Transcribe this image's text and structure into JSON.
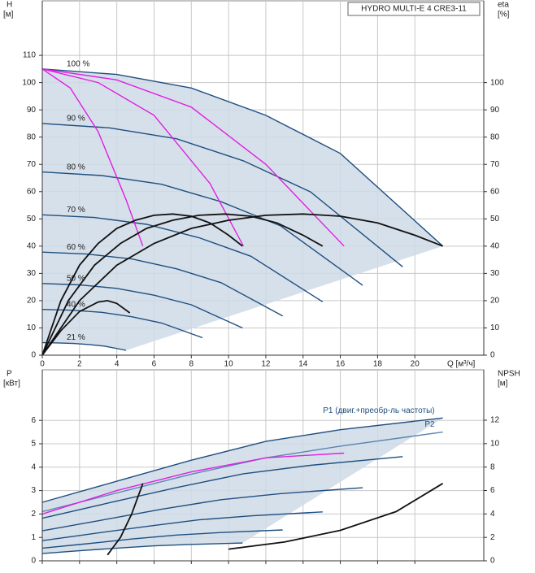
{
  "chart_data": [
    {
      "type": "line",
      "title": "HYDRO MULTI-E 4 CRE3-11",
      "y_label": "H",
      "y_unit": "[м]",
      "y2_label": "eta",
      "y2_unit": "[%]",
      "x_label": "Q [м³/ч]",
      "xlim": [
        0,
        23.7
      ],
      "xticks": [
        0,
        2,
        4,
        6,
        8,
        10,
        12,
        14,
        16,
        18,
        20
      ],
      "ylim": [
        0,
        130
      ],
      "yticks": [
        0,
        10,
        20,
        30,
        40,
        50,
        60,
        70,
        80,
        90,
        100,
        110
      ],
      "y2lim": [
        0,
        130
      ],
      "y2ticks": [
        0,
        10,
        20,
        30,
        40,
        50,
        60,
        70,
        80,
        90,
        100
      ],
      "grid": true,
      "shade": true,
      "label_position": "start",
      "series": [
        {
          "name": "100 %",
          "color": "#1f4f7f",
          "x": [
            0,
            4,
            8,
            12,
            16,
            21.5
          ],
          "values": [
            105,
            103,
            98,
            88,
            74,
            40
          ]
        },
        {
          "name": "90 %",
          "color": "#1f4f7f",
          "x": [
            0,
            3.6,
            7.2,
            10.8,
            14.4,
            19.35
          ],
          "values": [
            85,
            83.4,
            79.4,
            71.3,
            59.9,
            32.4
          ]
        },
        {
          "name": "80 %",
          "color": "#1f4f7f",
          "x": [
            0,
            3.2,
            6.4,
            9.6,
            12.8,
            17.2
          ],
          "values": [
            67.2,
            65.9,
            62.7,
            56.3,
            47.4,
            25.6
          ]
        },
        {
          "name": "70 %",
          "color": "#1f4f7f",
          "x": [
            0,
            2.8,
            5.6,
            8.4,
            11.2,
            15.05
          ],
          "values": [
            51.5,
            50.5,
            48,
            43.1,
            36.3,
            19.6
          ]
        },
        {
          "name": "60 %",
          "color": "#1f4f7f",
          "x": [
            0,
            2.4,
            4.8,
            7.2,
            9.6,
            12.9
          ],
          "values": [
            37.8,
            37.1,
            35.3,
            31.7,
            26.6,
            14.4
          ]
        },
        {
          "name": "50 %",
          "color": "#1f4f7f",
          "x": [
            0,
            2,
            4,
            6,
            8,
            10.75
          ],
          "values": [
            26.3,
            25.8,
            24.5,
            22,
            18.5,
            10
          ]
        },
        {
          "name": "40 %",
          "color": "#1f4f7f",
          "x": [
            0,
            1.6,
            3.2,
            4.8,
            6.4,
            8.6
          ],
          "values": [
            16.8,
            16.5,
            15.7,
            14.1,
            11.8,
            6.4
          ]
        },
        {
          "name": "21 %",
          "color": "#1f4f7f",
          "x": [
            0,
            0.84,
            1.68,
            2.52,
            3.36,
            4.5
          ],
          "values": [
            4.6,
            4.5,
            4.3,
            3.9,
            3.3,
            1.8
          ]
        },
        {
          "color": "#e020e0",
          "x": [
            0,
            1.5,
            3,
            4.5,
            5.4
          ],
          "values": [
            105,
            98,
            82,
            57,
            40
          ]
        },
        {
          "color": "#e020e0",
          "x": [
            0,
            3,
            6,
            9,
            10.8
          ],
          "values": [
            105,
            100,
            88,
            63,
            40
          ]
        },
        {
          "color": "#e020e0",
          "x": [
            0,
            4,
            8,
            12,
            16.2
          ],
          "values": [
            105,
            101,
            91,
            70,
            40
          ]
        },
        {
          "color": "#111111",
          "axis": "y2",
          "x": [
            0,
            2,
            4,
            6,
            8,
            10,
            12,
            14,
            16,
            18,
            20,
            21.5
          ],
          "values": [
            0,
            20,
            33,
            41,
            46.5,
            49.5,
            51.3,
            51.8,
            51,
            48.5,
            44,
            40
          ]
        },
        {
          "color": "#111111",
          "axis": "y2",
          "x": [
            0,
            1.4,
            2.8,
            4.2,
            5.6,
            7,
            8.4,
            9.8,
            11.2,
            12.6,
            14,
            15.05
          ],
          "values": [
            0,
            20,
            33,
            41,
            46.5,
            49.5,
            51.3,
            51.8,
            51,
            48.5,
            44,
            40
          ]
        },
        {
          "color": "#111111",
          "axis": "y2",
          "x": [
            0,
            1,
            2,
            3,
            4,
            5,
            6,
            7,
            8,
            9,
            10,
            10.75
          ],
          "values": [
            0,
            20,
            33,
            41,
            46.5,
            49.5,
            51.3,
            51.8,
            51,
            48.5,
            44,
            40
          ]
        },
        {
          "color": "#111111",
          "axis": "y2",
          "x": [
            0,
            1,
            2,
            3,
            3.5,
            4,
            4.7
          ],
          "values": [
            0,
            9,
            16,
            19.5,
            20,
            19,
            15.5
          ]
        }
      ]
    },
    {
      "type": "line",
      "y_label": "P",
      "y_unit": "[кВт]",
      "y2_label": "NPSH",
      "y2_unit": "[м]",
      "xlim": [
        0,
        23.7
      ],
      "xticks": [
        0,
        2,
        4,
        6,
        8,
        10,
        12,
        14,
        16,
        18,
        20
      ],
      "ylim": [
        0,
        8.16
      ],
      "yticks": [
        0,
        1,
        2,
        3,
        4,
        5,
        6
      ],
      "y2lim": [
        0,
        16.3
      ],
      "y2ticks": [
        0,
        2,
        4,
        6,
        8,
        10,
        12
      ],
      "grid": true,
      "shade": true,
      "label_position": "end",
      "series": [
        {
          "name": "P1 (двиг.+преобр-ль частоты)",
          "color": "#1f4f7f",
          "x": [
            0,
            4,
            8,
            12,
            16,
            21.5
          ],
          "values": [
            2.5,
            3.4,
            4.3,
            5.1,
            5.6,
            6.1
          ]
        },
        {
          "color": "#1f4f7f",
          "x": [
            0,
            3.6,
            7.2,
            10.8,
            14.4,
            19.35
          ],
          "values": [
            1.82,
            2.48,
            3.13,
            3.72,
            4.08,
            4.45
          ]
        },
        {
          "color": "#1f4f7f",
          "x": [
            0,
            3.2,
            6.4,
            9.6,
            12.8,
            17.2
          ],
          "values": [
            1.28,
            1.74,
            2.2,
            2.61,
            2.87,
            3.12
          ]
        },
        {
          "color": "#1f4f7f",
          "x": [
            0,
            2.8,
            5.6,
            8.4,
            11.2,
            15.05
          ],
          "values": [
            0.86,
            1.17,
            1.47,
            1.75,
            1.92,
            2.09
          ]
        },
        {
          "color": "#1f4f7f",
          "x": [
            0,
            2.4,
            4.8,
            7.2,
            9.6,
            12.9
          ],
          "values": [
            0.54,
            0.73,
            0.93,
            1.1,
            1.21,
            1.32
          ]
        },
        {
          "color": "#1f4f7f",
          "x": [
            0,
            2,
            4,
            6,
            8,
            10.75
          ],
          "values": [
            0.31,
            0.43,
            0.54,
            0.64,
            0.7,
            0.76
          ]
        },
        {
          "name": "P2",
          "color": "#5b84b1",
          "x": [
            0,
            4,
            8,
            12,
            16,
            21.5
          ],
          "values": [
            2.1,
            2.9,
            3.7,
            4.4,
            4.9,
            5.5
          ]
        },
        {
          "color": "#e020e0",
          "x": [
            0,
            4,
            8,
            12,
            16.2
          ],
          "values": [
            2,
            3,
            3.8,
            4.4,
            4.6
          ]
        },
        {
          "color": "#111111",
          "axis": "y2",
          "x": [
            10,
            13,
            16,
            19,
            21.5
          ],
          "values": [
            1,
            1.6,
            2.6,
            4.2,
            6.6
          ]
        },
        {
          "color": "#111111",
          "axis": "y2",
          "x": [
            3.5,
            4.2,
            4.8,
            5.4
          ],
          "values": [
            0.5,
            2,
            4,
            6.6
          ]
        }
      ]
    }
  ]
}
